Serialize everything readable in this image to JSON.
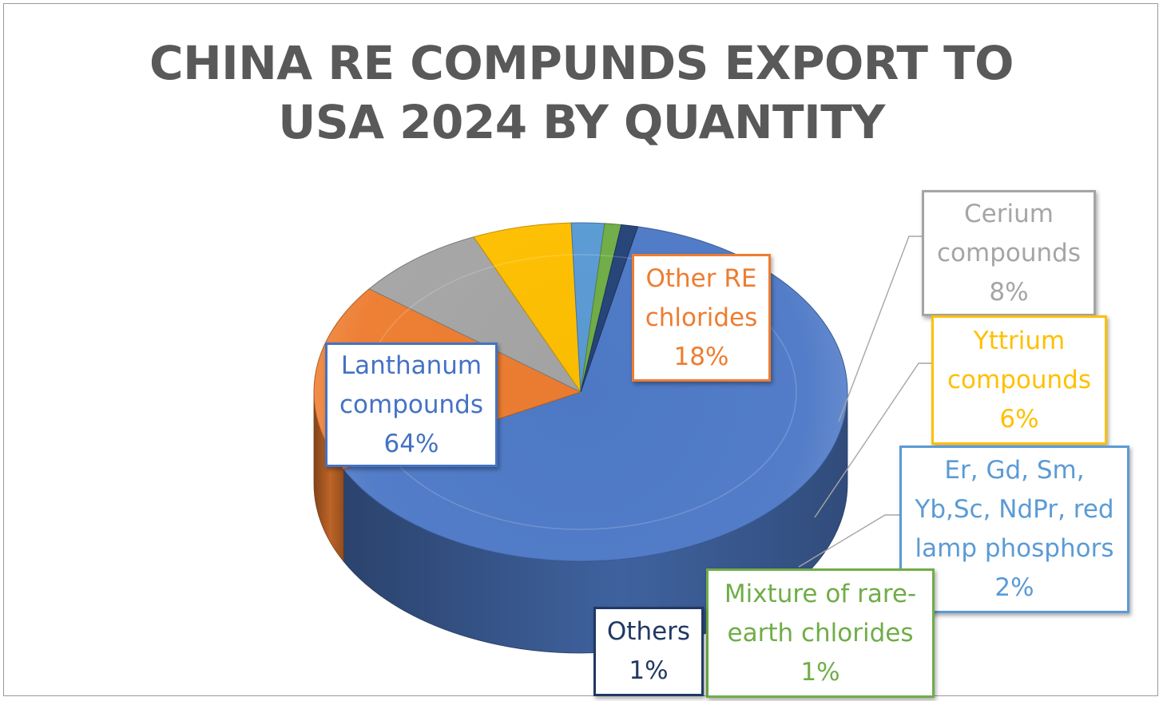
{
  "chart_data": {
    "type": "pie",
    "title": "CHINA RE COMPUNDS EXPORT TO USA 2024 BY QUANTITY",
    "title_lines": [
      "CHINA RE COMPUNDS EXPORT TO",
      "USA 2024 BY QUANTITY"
    ],
    "style": "3d",
    "legend": "none",
    "slices": [
      {
        "label_lines": [
          "Lanthanum",
          "compounds"
        ],
        "percent_label": "64%",
        "value": 64,
        "color": "#4f7ac7"
      },
      {
        "label_lines": [
          "Other RE",
          "chlorides"
        ],
        "percent_label": "18%",
        "value": 18,
        "color": "#ed7d31"
      },
      {
        "label_lines": [
          "Cerium",
          "compounds"
        ],
        "percent_label": "8%",
        "value": 8,
        "color": "#a5a5a5"
      },
      {
        "label_lines": [
          "Yttrium",
          "compounds"
        ],
        "percent_label": "6%",
        "value": 6,
        "color": "#ffc000"
      },
      {
        "label_lines": [
          "Er, Gd, Sm,",
          "Yb,Sc, NdPr, red",
          "lamp phosphors"
        ],
        "percent_label": "2%",
        "value": 2,
        "color": "#5b9bd5"
      },
      {
        "label_lines": [
          "Mixture of rare-",
          "earth chlorides"
        ],
        "percent_label": "1%",
        "value": 1,
        "color": "#70ad47"
      },
      {
        "label_lines": [
          "Others"
        ],
        "percent_label": "1%",
        "value": 1,
        "color": "#264478"
      }
    ]
  }
}
